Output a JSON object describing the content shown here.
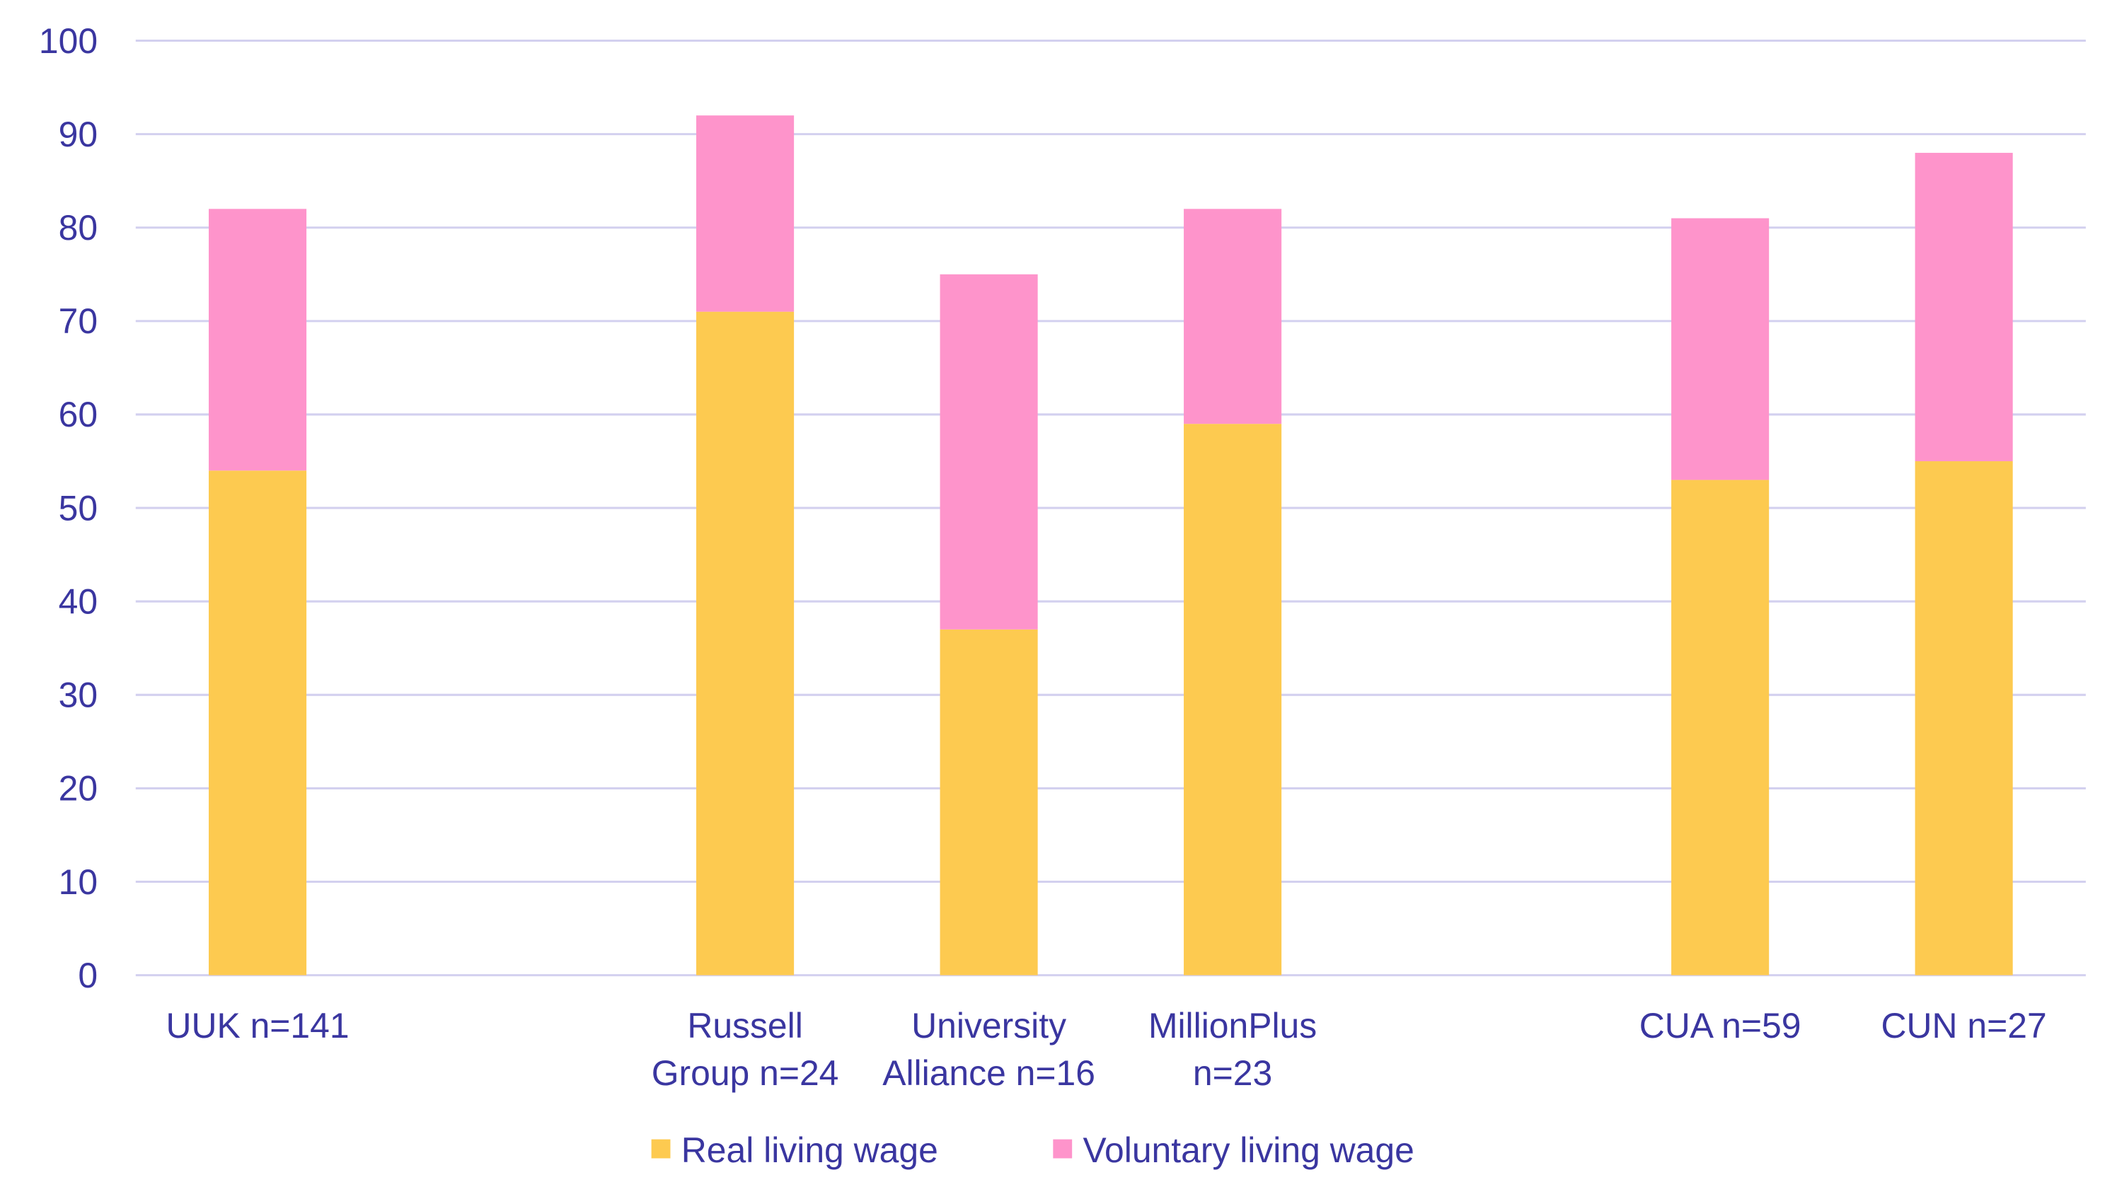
{
  "chart_data": {
    "type": "bar",
    "stacked": true,
    "title": "",
    "xlabel": "",
    "ylabel": "",
    "ylim": [
      0,
      100
    ],
    "yticks": [
      0,
      10,
      20,
      30,
      40,
      50,
      60,
      70,
      80,
      90,
      100
    ],
    "grid": true,
    "legend_position": "bottom-center",
    "categories": [
      [
        "UUK  n=141"
      ],
      [],
      [
        "Russell",
        "Group n=24"
      ],
      [
        "University",
        "Alliance n=16"
      ],
      [
        "MillionPlus",
        "n=23"
      ],
      [],
      [
        "CUA n=59"
      ],
      [
        "CUN n=27"
      ]
    ],
    "series": [
      {
        "name": "Real living wage",
        "color": "#fdca50",
        "values": [
          54,
          null,
          71,
          37,
          59,
          null,
          53,
          55
        ]
      },
      {
        "name": "Voluntary living wage",
        "color": "#fe94cb",
        "values": [
          28,
          null,
          21,
          38,
          23,
          null,
          28,
          33
        ]
      }
    ]
  }
}
